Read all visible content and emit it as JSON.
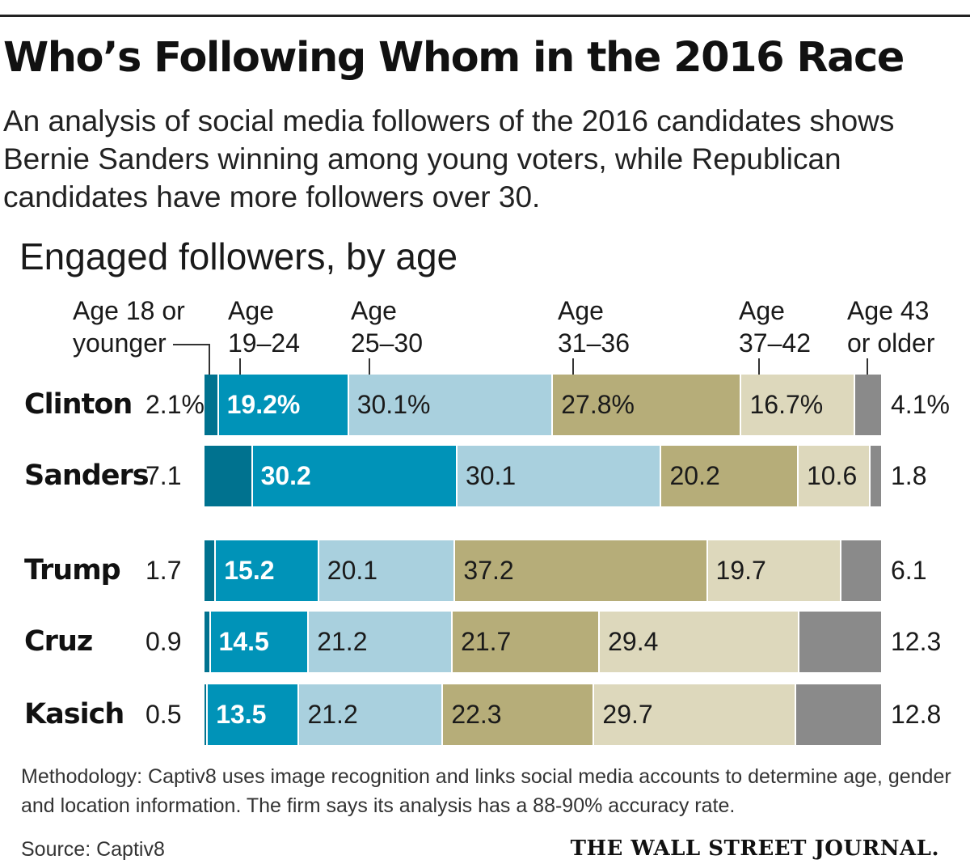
{
  "header": {
    "title": "Who’s Following Whom in the 2016 Race",
    "subtitle": "An analysis of social media followers of the 2016 candidates shows Bernie Sanders winning among young voters, while Republican candidates have more followers over 30."
  },
  "chart_data": {
    "type": "bar",
    "stacked": true,
    "orientation": "horizontal",
    "title": "Engaged followers, by age",
    "unit": "%",
    "categories": [
      "Clinton",
      "Sanders",
      "Trump",
      "Cruz",
      "Kasich"
    ],
    "age_groups": [
      {
        "line1": "Age 18 or",
        "line2": "younger",
        "color": "#00728f"
      },
      {
        "line1": "Age",
        "line2": "19–24",
        "color": "#0093b8"
      },
      {
        "line1": "Age",
        "line2": "25–30",
        "color": "#a9d0de"
      },
      {
        "line1": "Age",
        "line2": "31–36",
        "color": "#b6ad79"
      },
      {
        "line1": "Age",
        "line2": "37–42",
        "color": "#ddd8bc"
      },
      {
        "line1": "Age 43",
        "line2": "or older",
        "color": "#8a8a8a"
      }
    ],
    "rows": [
      {
        "name": "Clinton",
        "values": [
          2.1,
          19.2,
          30.1,
          27.8,
          16.7,
          4.1
        ],
        "labels": [
          "2.1%",
          "19.2%",
          "30.1%",
          "27.8%",
          "16.7%",
          "4.1%"
        ]
      },
      {
        "name": "Sanders",
        "values": [
          7.1,
          30.2,
          30.1,
          20.2,
          10.6,
          1.8
        ],
        "labels": [
          "7.1",
          "30.2",
          "30.1",
          "20.2",
          "10.6",
          "1.8"
        ]
      },
      {
        "name": "Trump",
        "values": [
          1.7,
          15.2,
          20.1,
          37.2,
          19.7,
          6.1
        ],
        "labels": [
          "1.7",
          "15.2",
          "20.1",
          "37.2",
          "19.7",
          "6.1"
        ]
      },
      {
        "name": "Cruz",
        "values": [
          0.9,
          14.5,
          21.2,
          21.7,
          29.4,
          12.3
        ],
        "labels": [
          "0.9",
          "14.5",
          "21.2",
          "21.7",
          "29.4",
          "12.3"
        ]
      },
      {
        "name": "Kasich",
        "values": [
          0.5,
          13.5,
          21.2,
          22.3,
          29.7,
          12.8
        ],
        "labels": [
          "0.5",
          "13.5",
          "21.2",
          "22.3",
          "29.7",
          "12.8"
        ]
      }
    ]
  },
  "footer": {
    "methodology": "Methodology: Captiv8 uses image recognition and links social media accounts to determine age, gender and location information. The firm says its analysis has a 88-90% accuracy rate.",
    "source": "Source: Captiv8",
    "publisher": "THE WALL STREET JOURNAL."
  }
}
